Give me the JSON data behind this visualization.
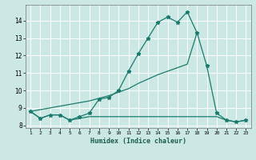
{
  "xlabel": "Humidex (Indice chaleur)",
  "bg_color": "#cce8e4",
  "grid_color": "#ffffff",
  "line_color": "#1a7a6e",
  "yticks": [
    8,
    9,
    10,
    11,
    12,
    13,
    14
  ],
  "xticks": [
    1,
    2,
    3,
    4,
    5,
    6,
    7,
    8,
    9,
    10,
    11,
    12,
    13,
    14,
    15,
    16,
    17,
    18,
    19,
    20,
    21,
    22,
    23
  ],
  "flat_x": [
    1,
    2,
    3,
    4,
    5,
    6,
    7,
    8,
    9,
    10,
    11,
    12,
    13,
    14,
    15,
    16,
    17,
    18,
    19,
    20,
    21,
    22,
    23
  ],
  "flat_y": [
    8.8,
    8.4,
    8.6,
    8.6,
    8.3,
    8.4,
    8.5,
    8.5,
    8.5,
    8.5,
    8.5,
    8.5,
    8.5,
    8.5,
    8.5,
    8.5,
    8.5,
    8.5,
    8.5,
    8.5,
    8.3,
    8.2,
    8.3
  ],
  "main_x": [
    1,
    2,
    3,
    4,
    5,
    6,
    7,
    8,
    9,
    10,
    11,
    12,
    13,
    14,
    15,
    16,
    17,
    18,
    19,
    20,
    21,
    22,
    23
  ],
  "main_y": [
    8.8,
    8.4,
    8.6,
    8.6,
    8.3,
    8.5,
    8.7,
    9.5,
    9.6,
    10.0,
    11.1,
    12.1,
    13.0,
    13.9,
    14.2,
    13.9,
    14.5,
    13.3,
    11.4,
    8.7,
    8.3,
    8.2,
    8.3
  ],
  "trend_x": [
    1,
    2,
    3,
    4,
    5,
    6,
    7,
    8,
    9,
    10,
    11,
    12,
    13,
    14,
    15,
    16,
    17,
    18
  ],
  "trend_y": [
    8.8,
    8.9,
    9.0,
    9.1,
    9.2,
    9.3,
    9.4,
    9.55,
    9.7,
    9.9,
    10.1,
    10.4,
    10.65,
    10.9,
    11.1,
    11.3,
    11.5,
    13.3
  ],
  "marker": "*",
  "markersize": 3.5,
  "linewidth": 0.9
}
